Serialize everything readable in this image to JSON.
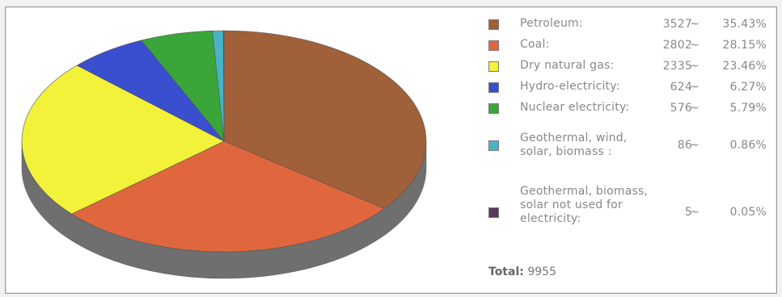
{
  "chart_data": {
    "type": "pie",
    "style": "3d",
    "slices": [
      {
        "label": "Petroleum:",
        "value": 3527,
        "percent": "35.43%",
        "color": "#a0603a"
      },
      {
        "label": "Coal:",
        "value": 2802,
        "percent": "28.15%",
        "color": "#e0673d"
      },
      {
        "label": "Dry natural gas:",
        "value": 2335,
        "percent": "23.46%",
        "color": "#f2f23a"
      },
      {
        "label": "Hydro-electricity:",
        "value": 624,
        "percent": "6.27%",
        "color": "#3a4ed0"
      },
      {
        "label": "Nuclear electricity:",
        "value": 576,
        "percent": "5.79%",
        "color": "#3aa63a"
      },
      {
        "label": "Geothermal, wind, solar, biomass :",
        "value": 86,
        "percent": "0.86%",
        "color": "#49b3c6"
      },
      {
        "label": "Geothermal, biomass, solar not used for electricity:",
        "value": 5,
        "percent": "0.05%",
        "color": "#5a3a58"
      }
    ],
    "separator": "~",
    "total_label": "Total:",
    "total_value": "9955",
    "side_color": "#6f6f6f"
  }
}
